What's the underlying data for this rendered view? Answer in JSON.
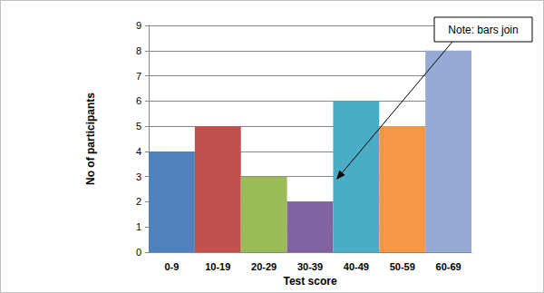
{
  "chart_data": {
    "type": "bar",
    "categories": [
      "0-9",
      "10-19",
      "20-29",
      "30-39",
      "40-49",
      "50-59",
      "60-69"
    ],
    "values": [
      4,
      5,
      3,
      2,
      6,
      5,
      8
    ],
    "colors": [
      "#4f81bd",
      "#c0504d",
      "#9bbb59",
      "#8064a2",
      "#4bacc6",
      "#f79646",
      "#95abd6"
    ],
    "xlabel": "Test score",
    "ylabel": "No of participants",
    "ylim": [
      0,
      9
    ],
    "yticks": [
      0,
      1,
      2,
      3,
      4,
      5,
      6,
      7,
      8,
      9
    ],
    "grid": true,
    "annotation": "Note: bars join"
  }
}
